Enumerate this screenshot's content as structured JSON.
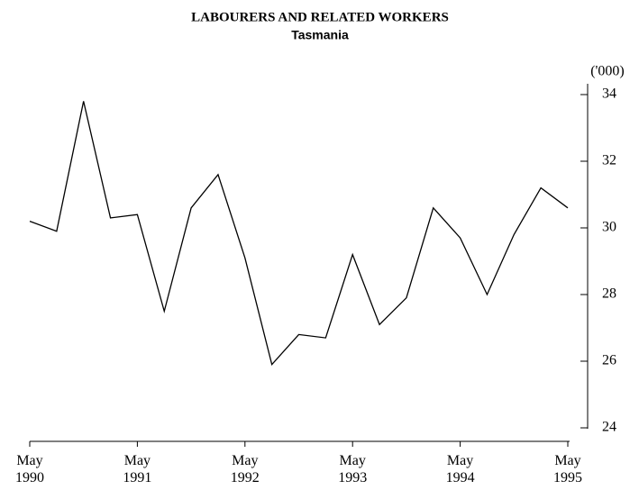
{
  "chart_data": {
    "type": "line",
    "title": "LABOURERS AND RELATED WORKERS",
    "subtitle": "Tasmania",
    "y_axis_label": "('000)",
    "categories": [
      "May 1990",
      null,
      null,
      null,
      "May 1991",
      null,
      null,
      null,
      "May 1992",
      null,
      null,
      null,
      "May 1993",
      null,
      null,
      null,
      "May 1994",
      null,
      null,
      null,
      "May 1995"
    ],
    "series": [
      {
        "name": "Labourers and related workers",
        "color": "#000000",
        "values": [
          30.2,
          29.9,
          33.8,
          30.3,
          30.4,
          27.5,
          30.6,
          31.6,
          29.1,
          25.9,
          26.8,
          26.7,
          29.2,
          27.1,
          27.9,
          30.6,
          29.7,
          28.0,
          29.8,
          31.2,
          30.6
        ]
      }
    ],
    "ylim": [
      24,
      34
    ],
    "yticks": [
      24,
      26,
      28,
      30,
      32,
      34
    ],
    "grid": false
  }
}
